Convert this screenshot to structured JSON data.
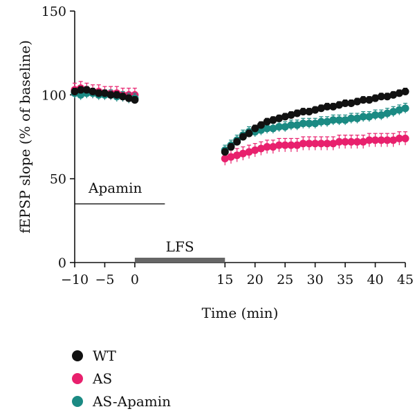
{
  "chart_data": {
    "type": "scatter",
    "xlabel": "Time (min)",
    "ylabel": "fEPSP slope (% of baseline)",
    "xlim": [
      -10,
      45
    ],
    "ylim": [
      0,
      150
    ],
    "x_ticks": [
      -10,
      -5,
      0,
      15,
      20,
      25,
      30,
      35,
      40,
      45
    ],
    "x_tick_labels": [
      "−10",
      "−5",
      "0",
      "15",
      "20",
      "25",
      "30",
      "35",
      "40",
      "45"
    ],
    "y_ticks": [
      0,
      50,
      100,
      150
    ],
    "y_tick_labels": [
      "0",
      "50",
      "100",
      "150"
    ],
    "annotations": {
      "apamin_label": "Apamin",
      "apamin_range": [
        -10,
        5
      ],
      "apamin_level": 35,
      "lfs_label": "LFS",
      "lfs_range": [
        0,
        15
      ]
    },
    "legend_position": "bottom-left",
    "series": [
      {
        "name": "WT",
        "color": "#111111",
        "error": 2,
        "points": [
          [
            -10,
            102
          ],
          [
            -9,
            103
          ],
          [
            -8,
            103
          ],
          [
            -7,
            102
          ],
          [
            -6,
            101
          ],
          [
            -5,
            101
          ],
          [
            -4,
            100
          ],
          [
            -3,
            100
          ],
          [
            -2,
            99
          ],
          [
            -1,
            98
          ],
          [
            0,
            97
          ],
          [
            15,
            66
          ],
          [
            16,
            69
          ],
          [
            17,
            72
          ],
          [
            18,
            75
          ],
          [
            19,
            77
          ],
          [
            20,
            80
          ],
          [
            21,
            82
          ],
          [
            22,
            84
          ],
          [
            23,
            85
          ],
          [
            24,
            86
          ],
          [
            25,
            87
          ],
          [
            26,
            88
          ],
          [
            27,
            89
          ],
          [
            28,
            90
          ],
          [
            29,
            90
          ],
          [
            30,
            91
          ],
          [
            31,
            92
          ],
          [
            32,
            93
          ],
          [
            33,
            93
          ],
          [
            34,
            94
          ],
          [
            35,
            95
          ],
          [
            36,
            95
          ],
          [
            37,
            96
          ],
          [
            38,
            97
          ],
          [
            39,
            97
          ],
          [
            40,
            98
          ],
          [
            41,
            99
          ],
          [
            42,
            99
          ],
          [
            43,
            100
          ],
          [
            44,
            101
          ],
          [
            45,
            102
          ]
        ]
      },
      {
        "name": "AS",
        "color": "#e8206d",
        "error": 4,
        "points": [
          [
            -10,
            103
          ],
          [
            -9,
            104
          ],
          [
            -8,
            103
          ],
          [
            -7,
            102
          ],
          [
            -6,
            102
          ],
          [
            -5,
            101
          ],
          [
            -4,
            101
          ],
          [
            -3,
            101
          ],
          [
            -2,
            100
          ],
          [
            -1,
            100
          ],
          [
            0,
            100
          ],
          [
            15,
            62
          ],
          [
            16,
            63
          ],
          [
            17,
            64
          ],
          [
            18,
            65
          ],
          [
            19,
            66
          ],
          [
            20,
            67
          ],
          [
            21,
            68
          ],
          [
            22,
            69
          ],
          [
            23,
            69
          ],
          [
            24,
            70
          ],
          [
            25,
            70
          ],
          [
            26,
            70
          ],
          [
            27,
            70
          ],
          [
            28,
            71
          ],
          [
            29,
            71
          ],
          [
            30,
            71
          ],
          [
            31,
            71
          ],
          [
            32,
            71
          ],
          [
            33,
            71
          ],
          [
            34,
            72
          ],
          [
            35,
            72
          ],
          [
            36,
            72
          ],
          [
            37,
            72
          ],
          [
            38,
            72
          ],
          [
            39,
            73
          ],
          [
            40,
            73
          ],
          [
            41,
            73
          ],
          [
            42,
            73
          ],
          [
            43,
            73
          ],
          [
            44,
            74
          ],
          [
            45,
            74
          ]
        ]
      },
      {
        "name": "AS-Apamin",
        "color": "#1b8a83",
        "error": 3,
        "points": [
          [
            -10,
            101
          ],
          [
            -9,
            100
          ],
          [
            -8,
            101
          ],
          [
            -7,
            101
          ],
          [
            -6,
            100
          ],
          [
            -5,
            100
          ],
          [
            -4,
            100
          ],
          [
            -3,
            99
          ],
          [
            -2,
            99
          ],
          [
            -1,
            98
          ],
          [
            0,
            98
          ],
          [
            15,
            67
          ],
          [
            16,
            70
          ],
          [
            17,
            73
          ],
          [
            18,
            76
          ],
          [
            19,
            78
          ],
          [
            20,
            78
          ],
          [
            21,
            79
          ],
          [
            22,
            80
          ],
          [
            23,
            80
          ],
          [
            24,
            81
          ],
          [
            25,
            81
          ],
          [
            26,
            82
          ],
          [
            27,
            82
          ],
          [
            28,
            83
          ],
          [
            29,
            83
          ],
          [
            30,
            83
          ],
          [
            31,
            84
          ],
          [
            32,
            84
          ],
          [
            33,
            85
          ],
          [
            34,
            85
          ],
          [
            35,
            85
          ],
          [
            36,
            86
          ],
          [
            37,
            86
          ],
          [
            38,
            87
          ],
          [
            39,
            87
          ],
          [
            40,
            88
          ],
          [
            41,
            88
          ],
          [
            42,
            89
          ],
          [
            43,
            90
          ],
          [
            44,
            91
          ],
          [
            45,
            92
          ]
        ]
      }
    ]
  }
}
